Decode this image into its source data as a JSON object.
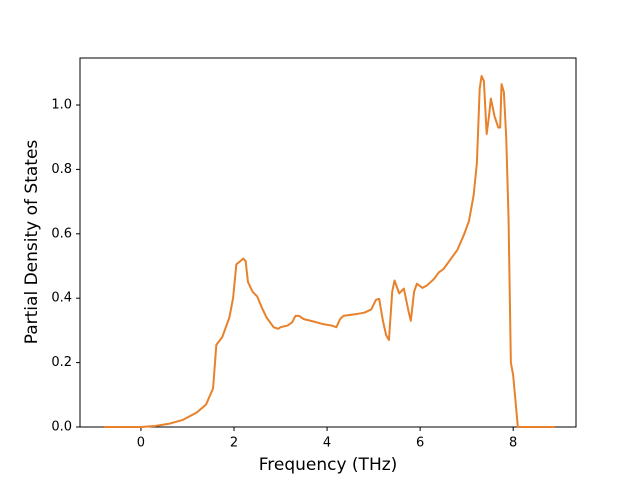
{
  "chart_data": {
    "type": "line",
    "xlabel": "Frequency (THz)",
    "ylabel": "Partial Density of States",
    "x": [
      -0.8,
      0,
      0.3,
      0.6,
      0.9,
      1.2,
      1.4,
      1.55,
      1.62,
      1.75,
      1.9,
      1.98,
      2.05,
      2.2,
      2.25,
      2.3,
      2.4,
      2.5,
      2.6,
      2.7,
      2.85,
      2.95,
      3.0,
      3.15,
      3.25,
      3.32,
      3.4,
      3.5,
      3.7,
      3.9,
      4.1,
      4.2,
      4.28,
      4.35,
      4.6,
      4.8,
      4.95,
      5.05,
      5.12,
      5.2,
      5.27,
      5.33,
      5.4,
      5.45,
      5.55,
      5.65,
      5.75,
      5.8,
      5.87,
      5.93,
      6.05,
      6.15,
      6.3,
      6.4,
      6.5,
      6.65,
      6.8,
      6.95,
      7.05,
      7.15,
      7.22,
      7.28,
      7.32,
      7.37,
      7.43,
      7.48,
      7.52,
      7.6,
      7.68,
      7.72,
      7.75,
      7.8,
      7.85,
      7.9,
      7.95,
      8.0,
      8.05,
      8.1,
      8.9
    ],
    "series": [
      {
        "color": "#e8812b",
        "values": [
          0,
          0,
          0.003,
          0.01,
          0.022,
          0.045,
          0.07,
          0.12,
          0.255,
          0.28,
          0.34,
          0.4,
          0.505,
          0.523,
          0.515,
          0.45,
          0.42,
          0.405,
          0.37,
          0.34,
          0.31,
          0.305,
          0.31,
          0.315,
          0.325,
          0.345,
          0.345,
          0.335,
          0.328,
          0.32,
          0.315,
          0.31,
          0.335,
          0.345,
          0.35,
          0.355,
          0.365,
          0.395,
          0.398,
          0.33,
          0.285,
          0.27,
          0.42,
          0.455,
          0.415,
          0.43,
          0.36,
          0.33,
          0.42,
          0.445,
          0.432,
          0.44,
          0.46,
          0.48,
          0.49,
          0.52,
          0.55,
          0.6,
          0.64,
          0.72,
          0.82,
          1.05,
          1.09,
          1.075,
          0.91,
          0.965,
          1.02,
          0.965,
          0.93,
          0.93,
          1.065,
          1.04,
          0.9,
          0.65,
          0.2,
          0.16,
          0.08,
          0,
          0
        ]
      }
    ],
    "xlim": [
      -1.31,
      9.35
    ],
    "xticks": [
      0,
      2,
      4,
      6,
      8
    ],
    "ylim": [
      0,
      1.146
    ],
    "yticks": [
      {
        "value": 0,
        "label": "0.0"
      },
      0.2,
      0.4,
      0.6,
      0.8,
      {
        "value": 1,
        "label": "1.0"
      }
    ]
  }
}
